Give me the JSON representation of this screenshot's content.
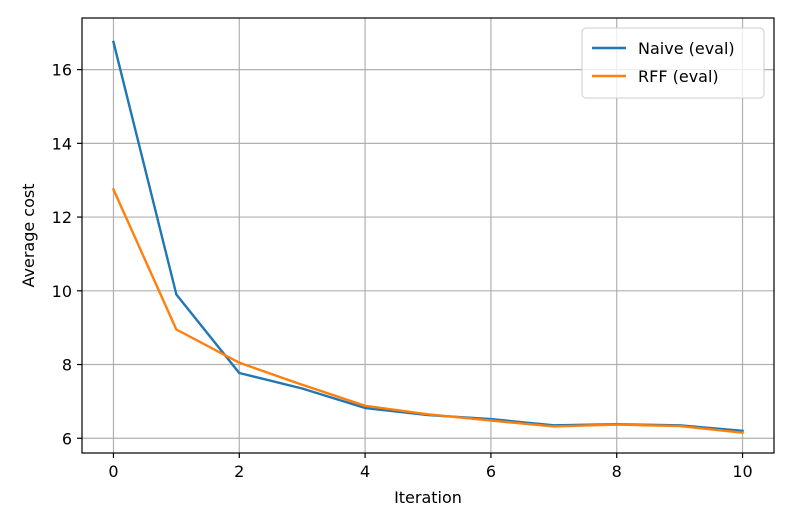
{
  "chart_data": {
    "type": "line",
    "title": "",
    "xlabel": "Iteration",
    "ylabel": "Average cost",
    "x": [
      0,
      1,
      2,
      3,
      4,
      5,
      6,
      7,
      8,
      9,
      10
    ],
    "xlim": [
      -0.5,
      10.5
    ],
    "ylim": [
      5.6,
      17.4
    ],
    "xticks": [
      0,
      2,
      4,
      6,
      8,
      10
    ],
    "yticks": [
      6,
      8,
      10,
      12,
      14,
      16
    ],
    "grid": true,
    "legend_position": "top-right",
    "series": [
      {
        "name": "Naive (eval)",
        "color": "#1f77b4",
        "values": [
          16.75,
          9.9,
          7.77,
          7.35,
          6.82,
          6.63,
          6.52,
          6.35,
          6.38,
          6.35,
          6.2
        ]
      },
      {
        "name": "RFF (eval)",
        "color": "#ff7f0e",
        "values": [
          12.75,
          8.95,
          8.05,
          7.45,
          6.88,
          6.65,
          6.48,
          6.32,
          6.37,
          6.33,
          6.15
        ]
      }
    ]
  }
}
